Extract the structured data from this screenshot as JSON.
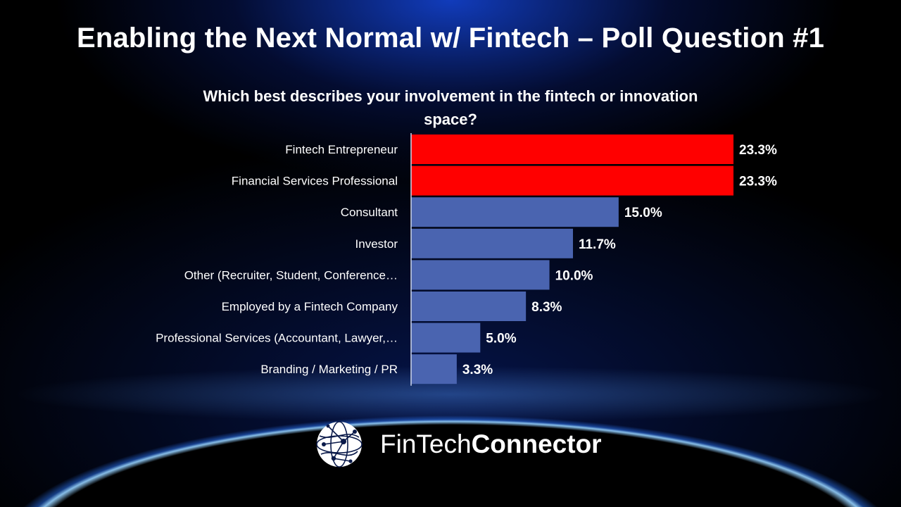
{
  "header": {
    "title": "Enabling the Next Normal w/ Fintech – Poll Question #1"
  },
  "chart_data": {
    "type": "bar",
    "orientation": "horizontal",
    "title": "Which best describes your involvement in the fintech or innovation space?",
    "categories": [
      "Fintech Entrepreneur",
      "Financial Services Professional",
      "Consultant",
      "Investor",
      "Other (Recruiter, Student, Conference…",
      "Employed by a Fintech Company",
      "Professional Services (Accountant, Lawyer,…",
      "Branding / Marketing / PR"
    ],
    "values": [
      23.3,
      23.3,
      15.0,
      11.7,
      10.0,
      8.3,
      5.0,
      3.3
    ],
    "value_labels": [
      "23.3%",
      "23.3%",
      "15.0%",
      "11.7%",
      "10.0%",
      "8.3%",
      "5.0%",
      "3.3%"
    ],
    "bar_colors": [
      "#ff0000",
      "#ff0000",
      "#4a64b0",
      "#4a64b0",
      "#4a64b0",
      "#4a64b0",
      "#4a64b0",
      "#4a64b0"
    ],
    "xlim": [
      0,
      23.3
    ],
    "grid": false,
    "legend": "none"
  },
  "logo": {
    "text_light": "FinTech",
    "text_bold": "Connector",
    "icon": "globe-network-icon"
  }
}
